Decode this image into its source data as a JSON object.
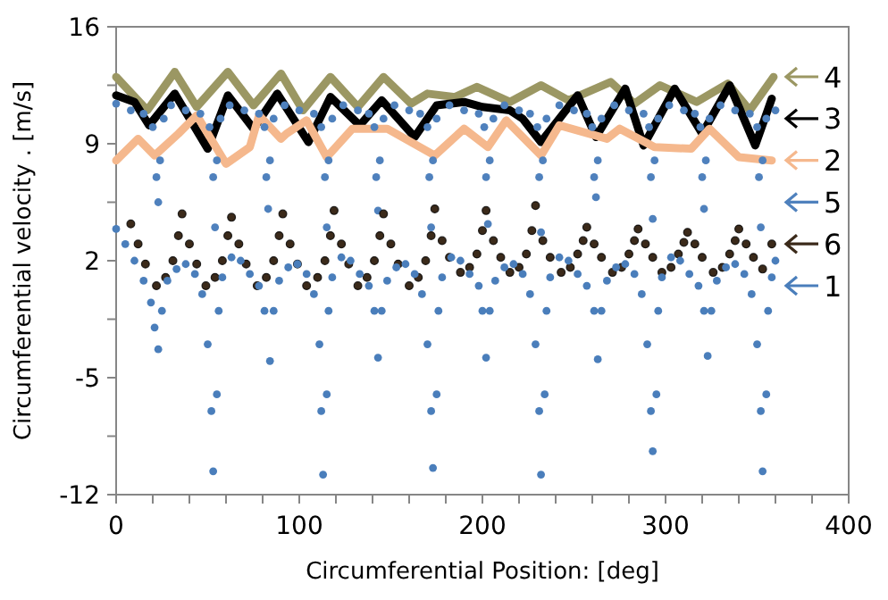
{
  "chart_data": {
    "type": "scatter",
    "xlabel": "Circumferential Position: [deg]",
    "ylabel": "Circumferential velocity . [m/s]",
    "xlim": [
      0,
      400
    ],
    "xticks": [
      0,
      {
        "value": 20,
        "label": null
      },
      {
        "value": 40,
        "label": null
      },
      {
        "value": 60,
        "label": null
      },
      {
        "value": 80,
        "label": null
      },
      100,
      {
        "value": 120,
        "label": null
      },
      {
        "value": 140,
        "label": null
      },
      {
        "value": 160,
        "label": null
      },
      {
        "value": 180,
        "label": null
      },
      200,
      {
        "value": 220,
        "label": null
      },
      {
        "value": 240,
        "label": null
      },
      {
        "value": 260,
        "label": null
      },
      {
        "value": 280,
        "label": null
      },
      300,
      {
        "value": 320,
        "label": null
      },
      {
        "value": 340,
        "label": null
      },
      {
        "value": 360,
        "label": null
      },
      {
        "value": 380,
        "label": null
      },
      400
    ],
    "ylim": [
      -12,
      16
    ],
    "yticks": [
      -12,
      {
        "value": -8.5,
        "label": null
      },
      -5,
      {
        "value": -1.5,
        "label": null
      },
      2,
      {
        "value": 5.5,
        "label": null
      },
      9,
      {
        "value": 12.5,
        "label": null
      },
      16
    ],
    "grid": false,
    "legend": "right",
    "marker": "circle",
    "series": [
      {
        "name": "4",
        "type": "line",
        "marker": "none",
        "line_style": "solid",
        "color": "#9b9763",
        "x": [
          0,
          17,
          32,
          44,
          61,
          75,
          90,
          102,
          117,
          132,
          146,
          161,
          170,
          185,
          197,
          215,
          232,
          247,
          270,
          283,
          297,
          317,
          334,
          346,
          359
        ],
        "values": [
          13.0,
          11.0,
          13.3,
          11.2,
          13.3,
          11.3,
          13.2,
          11.0,
          13.0,
          11.2,
          13.0,
          11.4,
          12.0,
          11.8,
          12.4,
          11.5,
          12.5,
          11.6,
          12.7,
          11.4,
          12.5,
          11.5,
          12.6,
          11.0,
          13.0
        ]
      },
      {
        "name": "3",
        "type": "line",
        "marker": "none",
        "line_style": "solid",
        "color": "#000000",
        "x": [
          0,
          10,
          18,
          32,
          50,
          61,
          75,
          88,
          105,
          117,
          133,
          145,
          163,
          175,
          190,
          200,
          215,
          222,
          232,
          252,
          262,
          278,
          288,
          305,
          320,
          335,
          349,
          358
        ],
        "values": [
          11.9,
          11.5,
          10.1,
          12.0,
          8.7,
          11.9,
          9.9,
          12.0,
          9.1,
          11.8,
          10.1,
          11.6,
          9.4,
          11.3,
          11.5,
          11.2,
          11.0,
          10.5,
          9.1,
          11.9,
          9.4,
          12.3,
          8.9,
          12.3,
          9.6,
          12.5,
          8.9,
          11.7
        ]
      },
      {
        "name": "2",
        "type": "line",
        "marker": "none",
        "line_style": "solid",
        "color": "#f5b88d",
        "x": [
          0,
          12,
          21,
          34,
          44,
          60,
          73,
          78,
          90,
          93,
          104,
          115,
          129,
          148,
          174,
          190,
          203,
          213,
          232,
          242,
          268,
          275,
          294,
          314,
          324,
          340,
          358
        ],
        "values": [
          8.0,
          9.3,
          8.3,
          9.6,
          10.7,
          7.8,
          8.8,
          10.7,
          9.3,
          9.6,
          10.4,
          8.2,
          9.9,
          9.9,
          8.3,
          9.9,
          8.8,
          10.4,
          8.3,
          10.1,
          9.3,
          9.9,
          8.8,
          8.7,
          9.9,
          8.2,
          8.0
        ]
      },
      {
        "name": "5",
        "color": "#4f81bd",
        "x": [
          0,
          8,
          15,
          20,
          22,
          23,
          24,
          26,
          30,
          38,
          46,
          51,
          53,
          54,
          55,
          57,
          62,
          70,
          78,
          81,
          82,
          83,
          84,
          86,
          92,
          100,
          108,
          112,
          114,
          115,
          116,
          118,
          124,
          132,
          138,
          141,
          142,
          143,
          144,
          146,
          152,
          160,
          166,
          170,
          171,
          172,
          173,
          175,
          182,
          190,
          198,
          201,
          202,
          203,
          204,
          206,
          212,
          220,
          226,
          230,
          231,
          232,
          233,
          235,
          242,
          250,
          257,
          260,
          261,
          262,
          263,
          265,
          272,
          280,
          288,
          291,
          292,
          293,
          294,
          296,
          302,
          310,
          316,
          319,
          320,
          321,
          322,
          324,
          330,
          338,
          346,
          350,
          351,
          352,
          353,
          355,
          360
        ],
        "values": [
          11.4,
          11.0,
          10.8,
          10.0,
          7.0,
          5.5,
          8.0,
          10.5,
          11.3,
          11.0,
          10.8,
          10.0,
          7.0,
          4.0,
          8.0,
          10.5,
          11.3,
          11.0,
          10.8,
          10.0,
          7.0,
          5.1,
          8.0,
          10.5,
          11.3,
          11.0,
          10.8,
          10.0,
          7.0,
          4.0,
          8.0,
          10.5,
          11.3,
          11.0,
          10.8,
          10.0,
          7.0,
          5.0,
          8.0,
          10.5,
          11.3,
          11.0,
          10.8,
          10.0,
          7.0,
          4.0,
          8.0,
          10.5,
          11.3,
          11.0,
          10.8,
          10.0,
          7.0,
          4.2,
          8.0,
          10.5,
          11.3,
          11.0,
          10.8,
          10.0,
          7.0,
          3.7,
          8.0,
          10.5,
          11.3,
          11.0,
          10.8,
          10.0,
          7.0,
          5.8,
          8.0,
          10.5,
          11.3,
          11.0,
          10.8,
          10.0,
          7.0,
          4.5,
          8.0,
          10.5,
          11.3,
          11.0,
          10.8,
          10.0,
          7.0,
          5.1,
          8.0,
          10.5,
          11.3,
          11.0,
          10.8,
          10.0,
          7.0,
          4.0,
          8.0,
          10.5,
          11.0
        ]
      },
      {
        "name": "6",
        "color": "#3b2a1a",
        "x": [
          8,
          12,
          16,
          22,
          27,
          31,
          34,
          36,
          40,
          44,
          49,
          54,
          58,
          61,
          63,
          67,
          71,
          77,
          82,
          86,
          89,
          91,
          95,
          99,
          104,
          110,
          114,
          117,
          119,
          123,
          127,
          132,
          137,
          141,
          144,
          146,
          150,
          154,
          160,
          165,
          169,
          172,
          174,
          178,
          182,
          188,
          193,
          197,
          200,
          202,
          206,
          210,
          215,
          220,
          224,
          227,
          229,
          233,
          237,
          243,
          248,
          252,
          255,
          257,
          261,
          265,
          271,
          276,
          280,
          283,
          285,
          289,
          293,
          298,
          303,
          307,
          310,
          312,
          316,
          320,
          326,
          331,
          335,
          338,
          340,
          344,
          348,
          353,
          358
        ],
        "values": [
          4.2,
          3.0,
          1.8,
          0.5,
          1.0,
          2.0,
          3.5,
          4.8,
          3.0,
          1.8,
          0.5,
          1.0,
          2.0,
          3.5,
          4.6,
          3.0,
          1.8,
          0.5,
          1.0,
          2.0,
          3.5,
          4.8,
          3.0,
          1.8,
          0.5,
          1.0,
          2.0,
          3.5,
          5.0,
          3.0,
          1.8,
          0.5,
          1.0,
          2.0,
          3.5,
          4.8,
          3.0,
          1.8,
          0.5,
          1.0,
          2.0,
          3.5,
          5.1,
          3.2,
          2.2,
          1.3,
          1.6,
          2.4,
          3.8,
          5.0,
          3.2,
          2.2,
          1.3,
          1.6,
          2.4,
          3.8,
          5.3,
          3.2,
          2.2,
          1.3,
          1.6,
          2.4,
          3.2,
          4.0,
          3.0,
          2.2,
          1.3,
          1.6,
          2.4,
          3.2,
          3.9,
          3.0,
          2.2,
          1.3,
          1.6,
          2.4,
          3.1,
          3.7,
          3.0,
          2.2,
          1.3,
          1.6,
          2.4,
          3.2,
          3.9,
          3.0,
          2.2,
          1.5,
          3.0
        ]
      },
      {
        "name": "1",
        "color": "#4a7ebb",
        "x": [
          0,
          5,
          10,
          15,
          19,
          21,
          23,
          25,
          28,
          33,
          38,
          43,
          47,
          50,
          52,
          53,
          55,
          56,
          58,
          63,
          68,
          73,
          78,
          81,
          84,
          86,
          89,
          94,
          99,
          104,
          108,
          111,
          112,
          113,
          115,
          116,
          118,
          123,
          128,
          133,
          138,
          141,
          143,
          145,
          148,
          153,
          158,
          163,
          167,
          170,
          172,
          173,
          175,
          176,
          178,
          183,
          188,
          193,
          198,
          200,
          202,
          204,
          207,
          212,
          217,
          222,
          226,
          229,
          231,
          232,
          234,
          235,
          237,
          242,
          247,
          252,
          257,
          261,
          263,
          265,
          268,
          273,
          278,
          283,
          287,
          290,
          292,
          293,
          295,
          296,
          298,
          303,
          308,
          313,
          318,
          321,
          323,
          325,
          328,
          333,
          338,
          343,
          347,
          350,
          352,
          353,
          355,
          356,
          358,
          360
        ],
        "values": [
          3.9,
          3.0,
          2.0,
          0.8,
          -0.5,
          -2.0,
          -3.3,
          -1.0,
          0.8,
          1.5,
          1.8,
          1.2,
          0.0,
          -3.0,
          -7.0,
          -10.6,
          -6.0,
          -1.0,
          1.0,
          2.2,
          2.0,
          1.2,
          0.5,
          -1.0,
          -4.0,
          -1.0,
          0.8,
          1.6,
          1.8,
          1.2,
          0.0,
          -3.0,
          -7.0,
          -10.8,
          -6.0,
          -1.0,
          1.0,
          2.2,
          2.0,
          1.2,
          0.5,
          -1.0,
          -3.8,
          -1.0,
          0.8,
          1.6,
          1.8,
          1.2,
          0.0,
          -3.0,
          -7.0,
          -10.4,
          -6.0,
          -1.0,
          1.0,
          2.2,
          2.0,
          1.2,
          0.5,
          -1.0,
          -3.8,
          -1.0,
          0.8,
          1.6,
          1.8,
          1.2,
          0.0,
          -3.0,
          -7.0,
          -10.8,
          -6.0,
          -1.0,
          1.0,
          2.2,
          2.0,
          1.2,
          0.5,
          -1.0,
          -3.9,
          -1.0,
          0.8,
          1.6,
          1.8,
          1.2,
          0.0,
          -3.0,
          -7.0,
          -9.4,
          -6.0,
          -1.0,
          1.0,
          2.2,
          2.0,
          1.2,
          0.5,
          -1.0,
          -3.7,
          -1.0,
          0.8,
          1.6,
          1.8,
          1.2,
          0.0,
          -3.0,
          -7.0,
          -10.6,
          -6.0,
          -1.0,
          1.0,
          2.0
        ]
      }
    ]
  }
}
